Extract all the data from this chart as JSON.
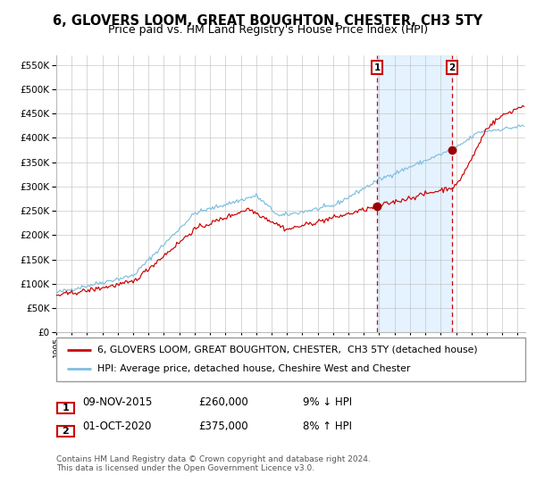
{
  "title": "6, GLOVERS LOOM, GREAT BOUGHTON, CHESTER, CH3 5TY",
  "subtitle": "Price paid vs. HM Land Registry's House Price Index (HPI)",
  "legend_line1": "6, GLOVERS LOOM, GREAT BOUGHTON, CHESTER,  CH3 5TY (detached house)",
  "legend_line2": "HPI: Average price, detached house, Cheshire West and Chester",
  "annotation1_date": "09-NOV-2015",
  "annotation1_price": "£260,000",
  "annotation1_hpi": "9% ↓ HPI",
  "annotation2_date": "01-OCT-2020",
  "annotation2_price": "£375,000",
  "annotation2_hpi": "8% ↑ HPI",
  "footer": "Contains HM Land Registry data © Crown copyright and database right 2024.\nThis data is licensed under the Open Government Licence v3.0.",
  "sale1_year": 2015.854,
  "sale1_value": 260000,
  "sale2_year": 2020.75,
  "sale2_value": 375000,
  "hpi_color": "#7fbfdf",
  "price_color": "#cc0000",
  "dot_color": "#990000",
  "dashed_color": "#cc0000",
  "shade_color": "#ddeeff",
  "grid_color": "#bbbbbb",
  "background_color": "#ffffff",
  "ylim": [
    0,
    570000
  ],
  "ytick_step": 50000,
  "xmin": 1995.0,
  "xmax": 2025.5,
  "title_fontsize": 10.5,
  "subtitle_fontsize": 9.0,
  "legend_fontsize": 7.8,
  "annotation_fontsize": 8.5,
  "footer_fontsize": 6.5,
  "ytick_fontsize": 7.5,
  "xtick_fontsize": 6.5
}
